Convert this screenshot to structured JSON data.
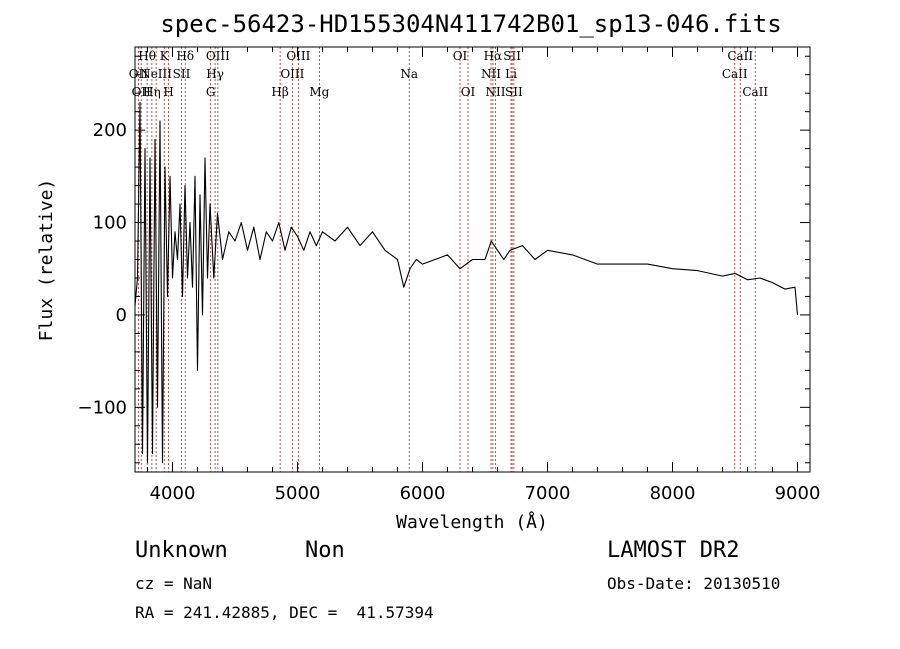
{
  "chart_data": {
    "type": "line",
    "title": "spec-56423-HD155304N411742B01_sp13-046.fits",
    "xlabel": "Wavelength (Å)",
    "ylabel": "Flux (relative)",
    "xlim": [
      3700,
      9100
    ],
    "ylim": [
      -170,
      290
    ],
    "xticks": [
      4000,
      5000,
      6000,
      7000,
      8000,
      9000
    ],
    "yticks": [
      -100,
      0,
      100,
      200
    ],
    "xtick_labels": [
      "4000",
      "5000",
      "6000",
      "7000",
      "8000",
      "9000"
    ],
    "ytick_labels": [
      "−100",
      "0",
      "100",
      "200"
    ],
    "series": [
      {
        "x": [
          3700,
          3720,
          3740,
          3760,
          3780,
          3800,
          3820,
          3840,
          3860,
          3880,
          3900,
          3920,
          3940,
          3960,
          3980,
          4000,
          4020,
          4040,
          4060,
          4080,
          4100,
          4120,
          4140,
          4160,
          4180,
          4200,
          4220,
          4240,
          4260,
          4280,
          4300,
          4330,
          4360,
          4400,
          4450,
          4500,
          4550,
          4600,
          4650,
          4700,
          4750,
          4800,
          4850,
          4900,
          4950,
          5000,
          5050,
          5100,
          5150,
          5200,
          5300,
          5400,
          5500,
          5600,
          5700,
          5800,
          5850,
          5900,
          5950,
          6000,
          6100,
          6200,
          6300,
          6400,
          6500,
          6550,
          6600,
          6650,
          6700,
          6800,
          6900,
          7000,
          7200,
          7400,
          7600,
          7800,
          8000,
          8200,
          8400,
          8500,
          8600,
          8700,
          8800,
          8900,
          8980,
          9000
        ],
        "y": [
          10,
          40,
          230,
          -150,
          180,
          -160,
          170,
          -150,
          190,
          -100,
          210,
          -160,
          160,
          20,
          150,
          40,
          90,
          60,
          120,
          20,
          140,
          40,
          100,
          30,
          150,
          -60,
          130,
          0,
          170,
          40,
          120,
          40,
          110,
          60,
          90,
          80,
          100,
          70,
          95,
          60,
          90,
          80,
          100,
          70,
          95,
          85,
          70,
          90,
          75,
          90,
          80,
          95,
          75,
          90,
          70,
          60,
          30,
          50,
          60,
          55,
          60,
          65,
          50,
          60,
          60,
          80,
          70,
          60,
          70,
          75,
          60,
          70,
          65,
          55,
          55,
          55,
          50,
          48,
          42,
          45,
          38,
          40,
          35,
          28,
          30,
          0
        ]
      }
    ],
    "lines": [
      {
        "wave": 3727,
        "label": "OII",
        "row": 2
      },
      {
        "wave": 3750,
        "label": "OII",
        "row": 3
      },
      {
        "wave": 3797,
        "label": "Hθ",
        "row": 1
      },
      {
        "wave": 3835,
        "label": "Hη",
        "row": 3
      },
      {
        "wave": 3869,
        "label": "NeIII",
        "row": 2
      },
      {
        "wave": 3934,
        "label": "K",
        "row": 1
      },
      {
        "wave": 3969,
        "label": "H",
        "row": 3
      },
      {
        "wave": 4072,
        "label": "SII",
        "row": 2
      },
      {
        "wave": 4102,
        "label": "Hδ",
        "row": 1
      },
      {
        "wave": 4305,
        "label": "G",
        "row": 3
      },
      {
        "wave": 4341,
        "label": "Hγ",
        "row": 2
      },
      {
        "wave": 4363,
        "label": "OIII",
        "row": 1
      },
      {
        "wave": 4861,
        "label": "Hβ",
        "row": 3
      },
      {
        "wave": 4959,
        "label": "OIII",
        "row": 2
      },
      {
        "wave": 5007,
        "label": "OIII",
        "row": 1
      },
      {
        "wave": 5175,
        "label": "Mg",
        "row": 3
      },
      {
        "wave": 5894,
        "label": "Na",
        "row": 2
      },
      {
        "wave": 6300,
        "label": "OI",
        "row": 1
      },
      {
        "wave": 6364,
        "label": "OI",
        "row": 3
      },
      {
        "wave": 6548,
        "label": "NII",
        "row": 2
      },
      {
        "wave": 6563,
        "label": "Hα",
        "row": 1
      },
      {
        "wave": 6584,
        "label": "NII",
        "row": 3
      },
      {
        "wave": 6708,
        "label": "Li",
        "row": 2
      },
      {
        "wave": 6717,
        "label": "SII",
        "row": 1
      },
      {
        "wave": 6731,
        "label": "SII",
        "row": 3
      },
      {
        "wave": 8498,
        "label": "CaII",
        "row": 2
      },
      {
        "wave": 8542,
        "label": "CaII",
        "row": 1
      },
      {
        "wave": 8662,
        "label": "CaII",
        "row": 3
      }
    ]
  },
  "info": {
    "class": "Unknown",
    "subclass": "Non",
    "survey": "LAMOST DR2",
    "cz": "cz = NaN",
    "obsdate": "Obs-Date: 20130510",
    "radec": "RA = 241.42885, DEC =  41.57394"
  },
  "colors": {
    "spectrum": "#000000",
    "line_marker": "#b22222",
    "axes": "#000000"
  }
}
